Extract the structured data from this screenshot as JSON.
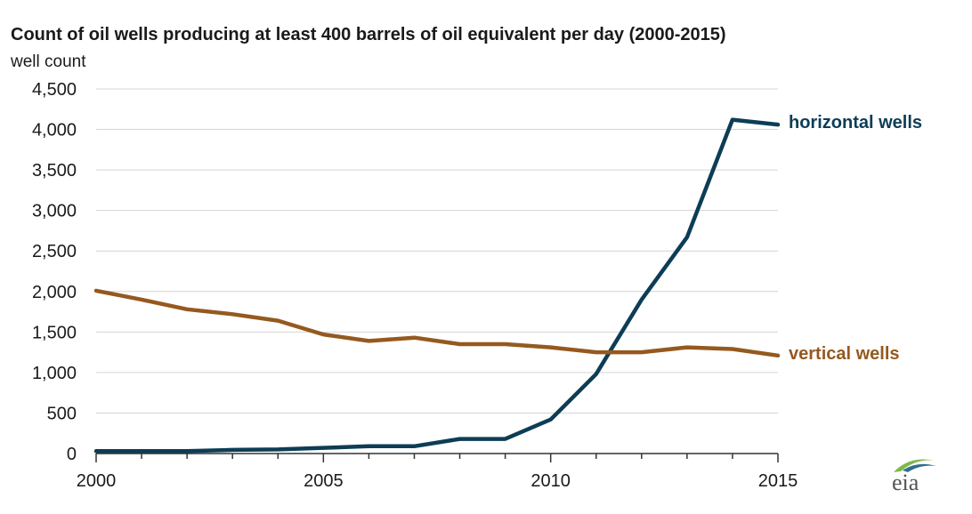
{
  "chart_data": {
    "type": "line",
    "title": "Count of oil wells producing at least 400 barrels of oil equivalent per day (2000-2015)",
    "ylabel": "well count",
    "xlabel": "",
    "x": [
      2000,
      2001,
      2002,
      2003,
      2004,
      2005,
      2006,
      2007,
      2008,
      2009,
      2010,
      2011,
      2012,
      2013,
      2014,
      2015
    ],
    "xlim": [
      2000,
      2015
    ],
    "ylim": [
      0,
      4500
    ],
    "x_ticks": [
      2000,
      2005,
      2010,
      2015
    ],
    "x_tick_labels": [
      "2000",
      "2005",
      "2010",
      "2015"
    ],
    "y_ticks": [
      0,
      500,
      1000,
      1500,
      2000,
      2500,
      3000,
      3500,
      4000,
      4500
    ],
    "y_tick_labels": [
      "0",
      "500",
      "1,000",
      "1,500",
      "2,000",
      "2,500",
      "3,000",
      "3,500",
      "4,000",
      "4,500"
    ],
    "grid": true,
    "legend": "inline-right",
    "series": [
      {
        "name": "horizontal wells",
        "color": "#0d3d56",
        "values": [
          30,
          30,
          30,
          45,
          50,
          70,
          90,
          90,
          180,
          180,
          420,
          980,
          1900,
          2670,
          4120,
          4060
        ]
      },
      {
        "name": "vertical wells",
        "color": "#95591f",
        "values": [
          2010,
          1900,
          1780,
          1720,
          1640,
          1470,
          1390,
          1430,
          1350,
          1350,
          1310,
          1250,
          1250,
          1310,
          1290,
          1210
        ]
      }
    ]
  },
  "logo": {
    "text": "eia",
    "accent_color": "#7db84a"
  }
}
